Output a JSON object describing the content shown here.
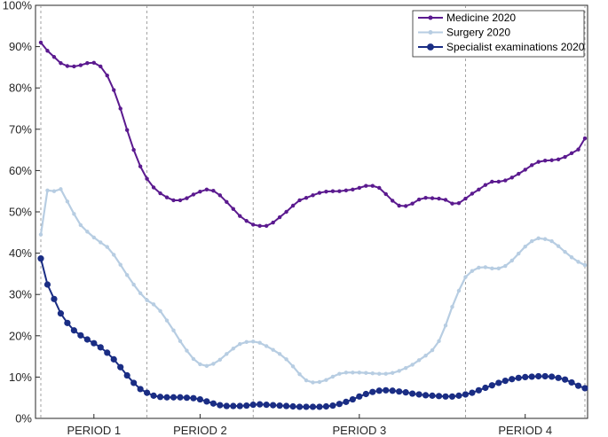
{
  "chart_data": {
    "type": "line",
    "title": "",
    "xlabel": "",
    "ylabel": "",
    "ylim": [
      0,
      100
    ],
    "yticks": [
      "0%",
      "10%",
      "20%",
      "30%",
      "40%",
      "50%",
      "60%",
      "70%",
      "80%",
      "90%",
      "100%"
    ],
    "n_points": 83,
    "period_boundaries": [
      0,
      16,
      32,
      64,
      82
    ],
    "periods": [
      {
        "label": "PERIOD 1",
        "center": 8
      },
      {
        "label": "PERIOD 2",
        "center": 24
      },
      {
        "label": "PERIOD 3",
        "center": 48
      },
      {
        "label": "PERIOD 4",
        "center": 73
      }
    ],
    "legend_position": "top-right",
    "series": [
      {
        "name": "Medicine 2020",
        "color": "#5b1a8f",
        "marker_radius": 2.2,
        "values": [
          91,
          89,
          87.5,
          86,
          85.3,
          85.2,
          85.5,
          86,
          86.1,
          85.2,
          83,
          79.5,
          75,
          69.8,
          65,
          61,
          58,
          55.9,
          54.5,
          53.5,
          52.8,
          52.8,
          53.3,
          54.2,
          54.9,
          55.4,
          55.1,
          54,
          52.4,
          50.7,
          49,
          47.8,
          46.9,
          46.6,
          46.6,
          47.4,
          48.7,
          50,
          51.5,
          52.8,
          53.4,
          54,
          54.6,
          54.9,
          55,
          55,
          55.2,
          55.4,
          55.8,
          56.3,
          56.3,
          55.8,
          54.3,
          52.7,
          51.5,
          51.4,
          52,
          53,
          53.4,
          53.3,
          53.2,
          52.9,
          52,
          52.1,
          53.2,
          54.4,
          55.4,
          56.5,
          57.3,
          57.3,
          57.6,
          58.3,
          59.2,
          60.2,
          61.3,
          62.1,
          62.4,
          62.5,
          62.7,
          63.3,
          64.2,
          65.1,
          67.8
        ]
      },
      {
        "name": "Surgery 2020",
        "color": "#b7cde2",
        "marker_radius": 2.2,
        "values": [
          44.5,
          55.2,
          55,
          55.5,
          52.5,
          49.5,
          46.8,
          45.2,
          43.8,
          42.6,
          41.5,
          39.6,
          37.2,
          34.7,
          32.4,
          30.3,
          28.6,
          27.6,
          26,
          23.7,
          21.3,
          18.7,
          16.4,
          14.4,
          13.1,
          12.7,
          13.2,
          14.2,
          15.6,
          16.9,
          18,
          18.5,
          18.6,
          18.3,
          17.5,
          16.6,
          15.6,
          14.3,
          12.6,
          10.7,
          9.2,
          8.7,
          8.8,
          9.3,
          10.1,
          10.8,
          11.1,
          11.1,
          11.1,
          11,
          10.9,
          10.8,
          10.8,
          11,
          11.5,
          12.2,
          13,
          14.1,
          15.2,
          16.5,
          18.7,
          22.5,
          27,
          30.9,
          34.2,
          35.7,
          36.5,
          36.6,
          36.3,
          36.3,
          36.9,
          38.2,
          39.9,
          41.6,
          42.9,
          43.6,
          43.4,
          42.9,
          41.7,
          40.3,
          39,
          37.9,
          37.1
        ]
      },
      {
        "name": "Specialist examinations 2020",
        "color": "#1a2d84",
        "marker_radius": 3.6,
        "values": [
          38.7,
          32.4,
          28.9,
          25.4,
          23.1,
          21.3,
          20.1,
          19.1,
          18.2,
          17.2,
          15.9,
          14.3,
          12.4,
          10.4,
          8.6,
          7.1,
          6.2,
          5.5,
          5.2,
          5.1,
          5.1,
          5.1,
          5,
          4.9,
          4.6,
          4.1,
          3.6,
          3.2,
          3,
          3,
          3,
          3.1,
          3.3,
          3.4,
          3.3,
          3.2,
          3.1,
          3,
          2.9,
          2.8,
          2.8,
          2.8,
          2.8,
          2.9,
          3.1,
          3.5,
          4,
          4.6,
          5.3,
          5.9,
          6.4,
          6.7,
          6.8,
          6.7,
          6.5,
          6.3,
          6,
          5.8,
          5.6,
          5.5,
          5.4,
          5.3,
          5.3,
          5.5,
          5.8,
          6.2,
          6.8,
          7.4,
          8,
          8.6,
          9.1,
          9.5,
          9.8,
          10,
          10.1,
          10.2,
          10.2,
          10.1,
          9.8,
          9.4,
          8.7,
          7.9,
          7.3
        ]
      }
    ]
  }
}
